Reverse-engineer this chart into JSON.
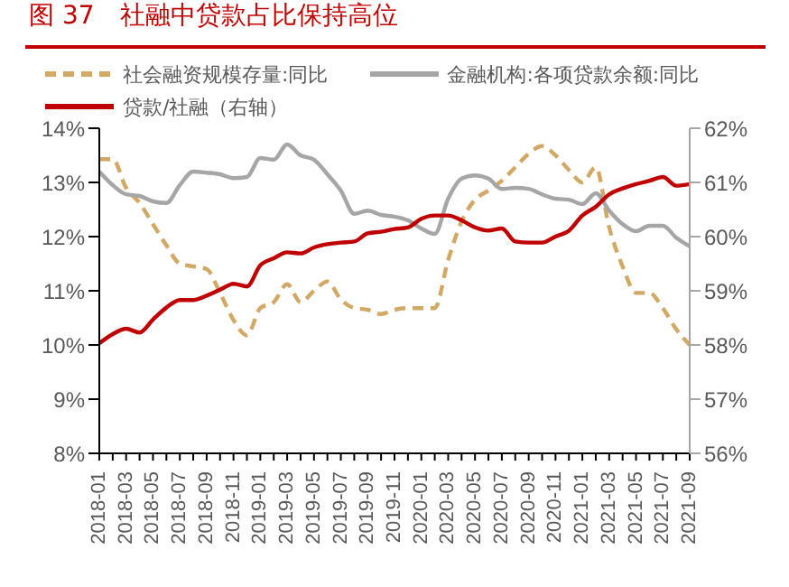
{
  "chart_data": {
    "type": "line",
    "title": "图 37　社融中贷款占比保持高位",
    "categories": [
      "2018-01",
      null,
      "2018-03",
      null,
      "2018-05",
      null,
      "2018-07",
      null,
      "2018-09",
      null,
      "2018-11",
      null,
      "2019-01",
      null,
      "2019-03",
      null,
      "2019-05",
      null,
      "2019-07",
      null,
      "2019-09",
      null,
      "2019-11",
      null,
      "2020-01",
      null,
      "2020-03",
      null,
      "2020-05",
      null,
      "2020-07",
      null,
      "2020-09",
      null,
      "2020-11",
      null,
      "2021-01",
      null,
      "2021-03",
      null,
      "2021-05",
      null,
      "2021-07",
      null,
      "2021-09"
    ],
    "series": [
      {
        "name": "社会融资规模存量:同比",
        "color": "#d2a865",
        "line_style": "dashed",
        "values": [
          13.43,
          13.43,
          12.9,
          12.62,
          12.23,
          11.84,
          11.5,
          11.45,
          11.4,
          10.96,
          10.46,
          10.18,
          10.68,
          10.79,
          11.12,
          10.79,
          11.0,
          11.17,
          10.84,
          10.68,
          10.65,
          10.57,
          10.65,
          10.68,
          10.68,
          10.68,
          11.57,
          12.28,
          12.68,
          12.85,
          13.03,
          13.28,
          13.53,
          13.67,
          13.5,
          13.23,
          13.0,
          13.28,
          12.17,
          11.45,
          10.96,
          10.96,
          10.68,
          10.29,
          10.0
        ]
      },
      {
        "name": "金融机构:各项贷款余额:同比",
        "color": "#a6a6a6",
        "line_style": "solid",
        "values": [
          13.2,
          12.95,
          12.78,
          12.75,
          12.65,
          12.62,
          12.95,
          13.2,
          13.18,
          13.15,
          13.08,
          13.1,
          13.45,
          13.42,
          13.7,
          13.5,
          13.42,
          13.15,
          12.85,
          12.42,
          12.48,
          12.4,
          12.37,
          12.3,
          12.15,
          12.05,
          12.7,
          13.07,
          13.13,
          13.07,
          12.88,
          12.9,
          12.88,
          12.78,
          12.7,
          12.68,
          12.6,
          12.8,
          12.48,
          12.23,
          12.1,
          12.2,
          12.2,
          11.98,
          11.82
        ]
      },
      {
        "name": "贷款/社融（右轴）",
        "color": "#c00000",
        "line_style": "solid",
        "axis": "y2",
        "values": [
          58.03,
          58.2,
          58.3,
          58.23,
          58.47,
          58.69,
          58.83,
          58.83,
          58.91,
          59.02,
          59.13,
          59.08,
          59.47,
          59.6,
          59.71,
          59.69,
          59.8,
          59.86,
          59.89,
          59.91,
          60.06,
          60.09,
          60.14,
          60.17,
          60.33,
          60.39,
          60.39,
          60.3,
          60.17,
          60.11,
          60.15,
          59.91,
          59.89,
          59.89,
          60.0,
          60.11,
          60.39,
          60.55,
          60.78,
          60.89,
          60.97,
          61.03,
          61.1,
          60.94,
          60.97
        ]
      }
    ],
    "ylim": [
      8,
      14
    ],
    "yticks": [
      {
        "value": 8,
        "label": "8%"
      },
      {
        "value": 9,
        "label": "9%"
      },
      {
        "value": 10,
        "label": "10%"
      },
      {
        "value": 11,
        "label": "11%"
      },
      {
        "value": 12,
        "label": "12%"
      },
      {
        "value": 13,
        "label": "13%"
      },
      {
        "value": 14,
        "label": "14%"
      }
    ],
    "y2lim": [
      56,
      62
    ],
    "y2ticks": [
      {
        "value": 56,
        "label": "56%"
      },
      {
        "value": 57,
        "label": "57%"
      },
      {
        "value": 58,
        "label": "58%"
      },
      {
        "value": 59,
        "label": "59%"
      },
      {
        "value": 60,
        "label": "60%"
      },
      {
        "value": 61,
        "label": "61%"
      },
      {
        "value": 62,
        "label": "62%"
      }
    ],
    "grid": false,
    "legend": "top",
    "marker": "none"
  }
}
